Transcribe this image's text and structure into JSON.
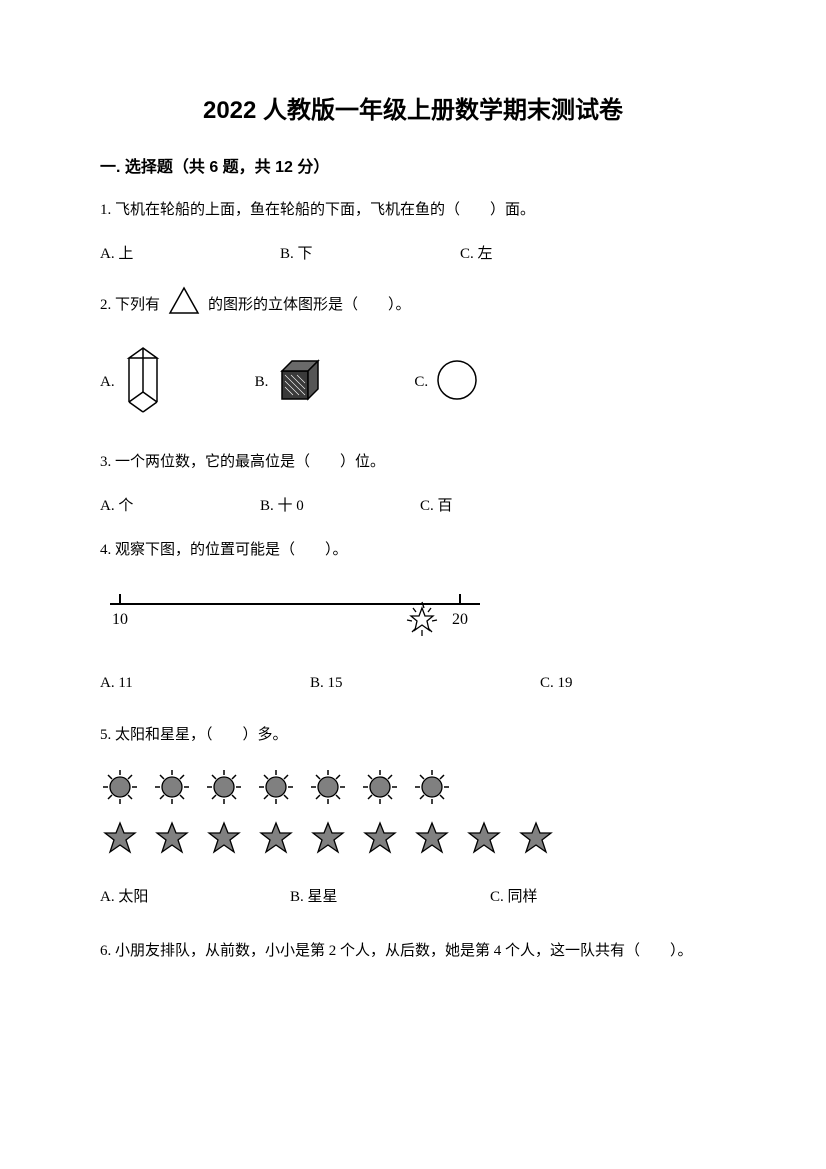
{
  "title": "2022 人教版一年级上册数学期末测试卷",
  "section1": {
    "header": "一. 选择题（共 6 题，共 12 分）"
  },
  "q1": {
    "text": "1. 飞机在轮船的上面，鱼在轮船的下面，飞机在鱼的（　　）面。",
    "a": "A. 上",
    "b": "B. 下",
    "c": "C. 左"
  },
  "q2": {
    "text_before": "2. 下列有",
    "text_after": "的图形的立体图形是（　　）。",
    "a": "A.",
    "b": "B.",
    "c": "C.",
    "triangle_stroke": "#000000",
    "prism_stroke": "#000000",
    "cube_fill": "#3a3a3a",
    "sphere_stroke": "#000000"
  },
  "q3": {
    "text": "3. 一个两位数，它的最高位是（　　）位。",
    "a": "A. 个",
    "b": "B. 十 0",
    "c": "C. 百"
  },
  "q4": {
    "text": "4. 观察下图，的位置可能是（　　）。",
    "a": "A. 11",
    "b": "B. 15",
    "c": "C. 19",
    "line_color": "#000000",
    "label_10": "10",
    "label_20": "20",
    "star_fill": "#ffffff",
    "star_stroke": "#000000"
  },
  "q5": {
    "text": "5. 太阳和星星，（　　）多。",
    "a": "A. 太阳",
    "b": "B. 星星",
    "c": "C. 同样",
    "sun_count": 7,
    "star_count": 9,
    "sun_fill": "#808080",
    "sun_stroke": "#000000",
    "star_fill": "#808080",
    "star_stroke": "#000000"
  },
  "q6": {
    "text": "6. 小朋友排队，从前数，小小是第 2 个人，从后数，她是第 4 个人，这一队共有（　　）。"
  }
}
